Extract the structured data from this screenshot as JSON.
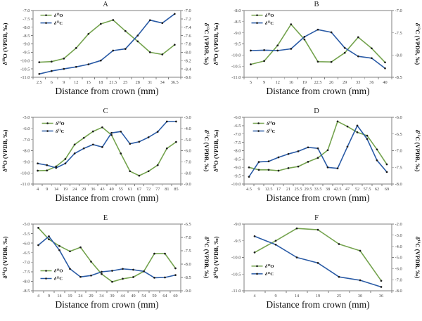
{
  "figure": {
    "xlabel": "Distance from crown (mm)",
    "ylabel_left": "δ¹⁸O (VPDB, ‰)",
    "ylabel_right": "δ¹³C (VPDB, ‰)",
    "legend_entries": [
      "δ¹⁸O",
      "δ¹³C"
    ],
    "colors": {
      "d18O_line": "#74a34e",
      "d13C_line": "#2a5ba6",
      "marker": "#1c1c1c",
      "frame": "#7f7f7f",
      "tick_text": "#404040",
      "label_text": "#111111"
    }
  },
  "chart_data": [
    {
      "type": "line",
      "title": "A",
      "xlabel": "Distance from crown (mm)",
      "categories": [
        "2.5",
        "6",
        "9",
        "12",
        "15",
        "18",
        "21.5",
        "25",
        "28",
        "31",
        "34",
        "36.5"
      ],
      "left_axis": {
        "label": "δ¹⁸O (VPDB, ‰)",
        "min": -11.0,
        "max": -7.0,
        "step": 0.5
      },
      "right_axis": {
        "label": "δ¹³C (VPDB, ‰)",
        "min": -8.6,
        "max": -7.0,
        "step": 0.2
      },
      "legend": {
        "pos": [
          0.05,
          0.07
        ],
        "entries": [
          "δ¹⁸O",
          "δ¹³C"
        ]
      },
      "series": [
        {
          "name": "δ¹⁸O",
          "axis": "left",
          "color": "#74a34e",
          "values": [
            -10.1,
            -10.06,
            -9.88,
            -9.25,
            -8.4,
            -7.8,
            -7.57,
            -8.23,
            -8.85,
            -9.5,
            -9.63,
            -9.05
          ]
        },
        {
          "name": "δ¹³C",
          "axis": "right",
          "color": "#2a5ba6",
          "values": [
            -8.52,
            -8.45,
            -8.4,
            -8.35,
            -8.29,
            -8.2,
            -7.96,
            -7.92,
            -7.6,
            -7.23,
            -7.3,
            -7.08
          ]
        }
      ]
    },
    {
      "type": "line",
      "title": "B",
      "xlabel": "Distance from crown (mm)",
      "categories": [
        "5",
        "9",
        "12",
        "16",
        "19",
        "22.5",
        "26",
        "29",
        "33",
        "36",
        "40"
      ],
      "left_axis": {
        "label": "δ¹⁸O (VPDB, ‰)",
        "min": -11.0,
        "max": -8.0,
        "step": 0.5
      },
      "right_axis": {
        "label": "δ¹³C (VPDB, ‰)",
        "min": -8.5,
        "max": -7.0,
        "step": 0.5
      },
      "legend": {
        "pos": [
          0.05,
          0.07
        ],
        "entries": [
          "δ¹⁸O",
          "δ¹³C"
        ]
      },
      "series": [
        {
          "name": "δ¹⁸O",
          "axis": "left",
          "color": "#74a34e",
          "values": [
            -10.42,
            -10.27,
            -9.57,
            -8.62,
            -9.3,
            -10.3,
            -10.31,
            -9.9,
            -9.2,
            -9.7,
            -10.33
          ]
        },
        {
          "name": "δ¹³C",
          "axis": "right",
          "color": "#2a5ba6",
          "values": [
            -7.9,
            -7.89,
            -7.9,
            -7.86,
            -7.59,
            -7.43,
            -7.49,
            -7.84,
            -8.03,
            -8.07,
            -8.3
          ]
        }
      ]
    },
    {
      "type": "line",
      "title": "C",
      "xlabel": "Distance from crown (mm)",
      "categories": [
        "4",
        "9",
        "14",
        "19",
        "24",
        "29",
        "36",
        "43",
        "49",
        "55",
        "61",
        "67",
        "72",
        "77",
        "81",
        "85"
      ],
      "left_axis": {
        "label": "δ¹⁸O (VPDB, ‰)",
        "min": -11.0,
        "max": -5.0,
        "step": 1.0
      },
      "right_axis": {
        "label": "δ¹³C (VPDB, ‰)",
        "min": -9.0,
        "max": -3.0,
        "step": 1.0
      },
      "legend": {
        "pos": [
          0.06,
          0.09
        ],
        "entries": [
          "δ¹⁸O",
          "δ¹³C"
        ]
      },
      "series": [
        {
          "name": "δ¹⁸O",
          "axis": "left",
          "color": "#74a34e",
          "values": [
            -9.8,
            -9.78,
            -9.42,
            -8.75,
            -7.45,
            -6.85,
            -6.27,
            -5.9,
            -6.6,
            -8.25,
            -9.85,
            -10.25,
            -9.85,
            -9.3,
            -7.8,
            -7.22
          ]
        },
        {
          "name": "δ¹³C",
          "axis": "right",
          "color": "#2a5ba6",
          "values": [
            -7.15,
            -7.3,
            -7.55,
            -7.15,
            -6.25,
            -5.8,
            -5.45,
            -5.68,
            -4.4,
            -4.28,
            -5.38,
            -5.2,
            -4.8,
            -4.3,
            -3.38,
            -3.38
          ]
        }
      ]
    },
    {
      "type": "line",
      "title": "D",
      "xlabel": "Distance from crown (mm)",
      "categories": [
        "4.5",
        "9",
        "12.5",
        "17",
        "21",
        "25.5",
        "29.5",
        "33.5",
        "38",
        "42.5",
        "47",
        "52",
        "57.5",
        "62",
        "69"
      ],
      "left_axis": {
        "label": "δ¹⁸O (VPDB, ‰)",
        "min": -10.0,
        "max": -6.0,
        "step": 0.5
      },
      "right_axis": {
        "label": "δ¹³C (VPDB, ‰)",
        "min": -8.0,
        "max": -6.0,
        "step": 0.5
      },
      "legend": {
        "pos": [
          0.06,
          0.09
        ],
        "entries": [
          "δ¹⁸O",
          "δ¹³C"
        ]
      },
      "series": [
        {
          "name": "δ¹⁸O",
          "axis": "left",
          "color": "#74a34e",
          "values": [
            -9.0,
            -9.15,
            -9.15,
            -9.2,
            -9.05,
            -8.95,
            -8.67,
            -8.43,
            -7.97,
            -6.25,
            -6.55,
            -6.9,
            -7.1,
            -7.93,
            -8.82
          ]
        },
        {
          "name": "δ¹³C",
          "axis": "right",
          "color": "#2a5ba6",
          "values": [
            -7.78,
            -7.34,
            -7.32,
            -7.2,
            -7.1,
            -7.02,
            -6.9,
            -6.93,
            -7.5,
            -7.53,
            -6.88,
            -6.25,
            -6.65,
            -7.29,
            -7.64
          ]
        }
      ]
    },
    {
      "type": "line",
      "title": "E",
      "xlabel": "Distance from crown (mm)",
      "categories": [
        "4",
        "9",
        "14",
        "19",
        "24",
        "29",
        "34",
        "39",
        "44",
        "49",
        "54",
        "59",
        "64",
        "69"
      ],
      "left_axis": {
        "label": "δ¹⁸O (VPDB, ‰)",
        "min": -8.5,
        "max": -5.0,
        "step": 0.5
      },
      "right_axis": {
        "label": "δ¹³C (VPDB, ‰)",
        "min": -9.0,
        "max": -6.5,
        "step": 0.5
      },
      "legend": {
        "pos": [
          0.05,
          0.7
        ],
        "entries": [
          "δ¹⁸O",
          "δ¹³C"
        ]
      },
      "series": [
        {
          "name": "δ¹⁸O",
          "axis": "left",
          "color": "#74a34e",
          "values": [
            -5.2,
            -5.8,
            -6.15,
            -6.43,
            -6.22,
            -6.97,
            -7.62,
            -8.03,
            -7.87,
            -7.78,
            -7.48,
            -6.55,
            -6.55,
            -7.32
          ]
        },
        {
          "name": "δ¹³C",
          "axis": "right",
          "color": "#2a5ba6",
          "values": [
            -7.29,
            -6.96,
            -7.48,
            -8.18,
            -8.48,
            -8.43,
            -8.29,
            -8.25,
            -8.18,
            -8.21,
            -8.27,
            -8.51,
            -8.5,
            -8.41
          ]
        }
      ]
    },
    {
      "type": "line",
      "title": "F",
      "xlabel": "Distance from crown (mm)",
      "categories": [
        "4",
        "9",
        "14",
        "19",
        "25",
        "30",
        "36"
      ],
      "left_axis": {
        "label": "δ¹⁸O (VPDB, ‰)",
        "min": -11.0,
        "max": -9.0,
        "step": 0.5
      },
      "right_axis": {
        "label": "δ¹³C (VPDB, ‰)",
        "min": -8.0,
        "max": -2.0,
        "step": 1.0
      },
      "legend": {
        "pos": [
          0.05,
          0.63
        ],
        "entries": [
          "δ¹⁸O",
          "δ¹³C"
        ]
      },
      "series": [
        {
          "name": "δ¹⁸O",
          "axis": "left",
          "color": "#74a34e",
          "values": [
            -9.85,
            -9.5,
            -9.13,
            -9.17,
            -9.6,
            -9.8,
            -10.7
          ]
        },
        {
          "name": "δ¹³C",
          "axis": "right",
          "color": "#2a5ba6",
          "values": [
            -3.1,
            -3.85,
            -5.0,
            -5.5,
            -6.75,
            -7.05,
            -7.65
          ]
        }
      ]
    }
  ]
}
